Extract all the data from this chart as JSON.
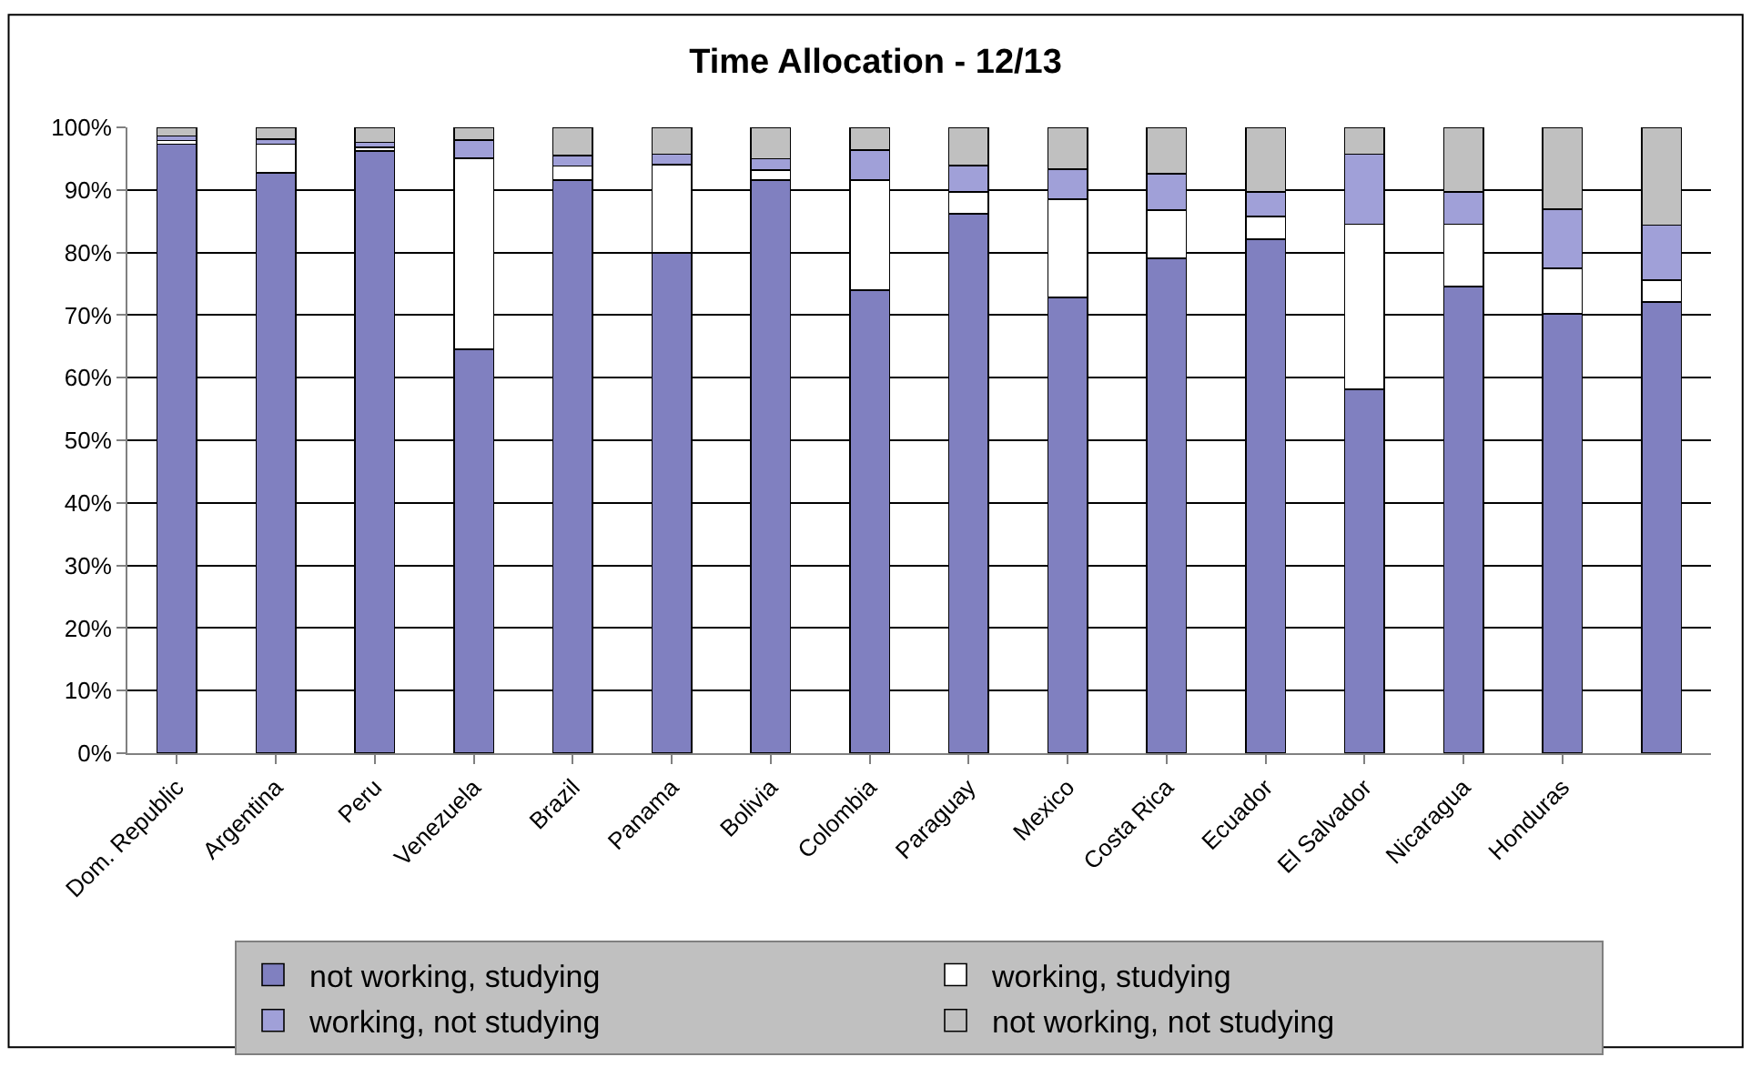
{
  "chart_data": {
    "type": "bar",
    "title": "Time Allocation - 12/13",
    "stacked": true,
    "grid": "y",
    "legend": "bottom",
    "categories": [
      "Dom. Republic",
      "Argentina",
      "Peru",
      "Venezuela",
      "Brazil",
      "Panama",
      "Bolivia",
      "Colombia",
      "Paraguay",
      "Mexico",
      "Costa Rica",
      "Ecuador",
      "El Salvador",
      "Nicaragua",
      "Honduras",
      null
    ],
    "ylim": [
      0,
      100
    ],
    "yticks": [
      {
        "value": 0,
        "label": "0%"
      },
      {
        "value": 10,
        "label": "10%"
      },
      {
        "value": 20,
        "label": "20%"
      },
      {
        "value": 30,
        "label": "30%"
      },
      {
        "value": 40,
        "label": "40%"
      },
      {
        "value": 50,
        "label": "50%"
      },
      {
        "value": 60,
        "label": "60%"
      },
      {
        "value": 70,
        "label": "70%"
      },
      {
        "value": 80,
        "label": "80%"
      },
      {
        "value": 90,
        "label": "90%"
      },
      {
        "value": 100,
        "label": "100%"
      }
    ],
    "series": [
      {
        "name": "not working, studying",
        "color": "#8080c0",
        "values": [
          97.3,
          92.7,
          96.2,
          64.5,
          91.6,
          79.9,
          91.6,
          74.0,
          86.2,
          72.8,
          79.1,
          82.1,
          58.1,
          74.6,
          70.2,
          72.1
        ]
      },
      {
        "name": "working, studying",
        "color": "#ffffff",
        "values": [
          0.6,
          4.6,
          0.6,
          30.6,
          2.2,
          14.1,
          1.6,
          17.6,
          3.5,
          15.7,
          7.7,
          3.7,
          26.4,
          9.9,
          7.3,
          3.5
        ]
      },
      {
        "name": "working, not studying",
        "color": "#a0a0d8",
        "values": [
          0.7,
          0.8,
          0.8,
          2.9,
          1.7,
          1.7,
          1.8,
          4.8,
          4.2,
          4.8,
          5.8,
          3.9,
          11.2,
          5.2,
          9.4,
          8.8
        ]
      },
      {
        "name": "not working, not studying",
        "color": "#c0c0c0",
        "values": [
          1.4,
          1.9,
          2.4,
          2.0,
          4.5,
          4.3,
          5.0,
          3.6,
          6.1,
          6.7,
          7.4,
          10.3,
          4.3,
          10.3,
          13.1,
          15.6
        ]
      }
    ]
  }
}
